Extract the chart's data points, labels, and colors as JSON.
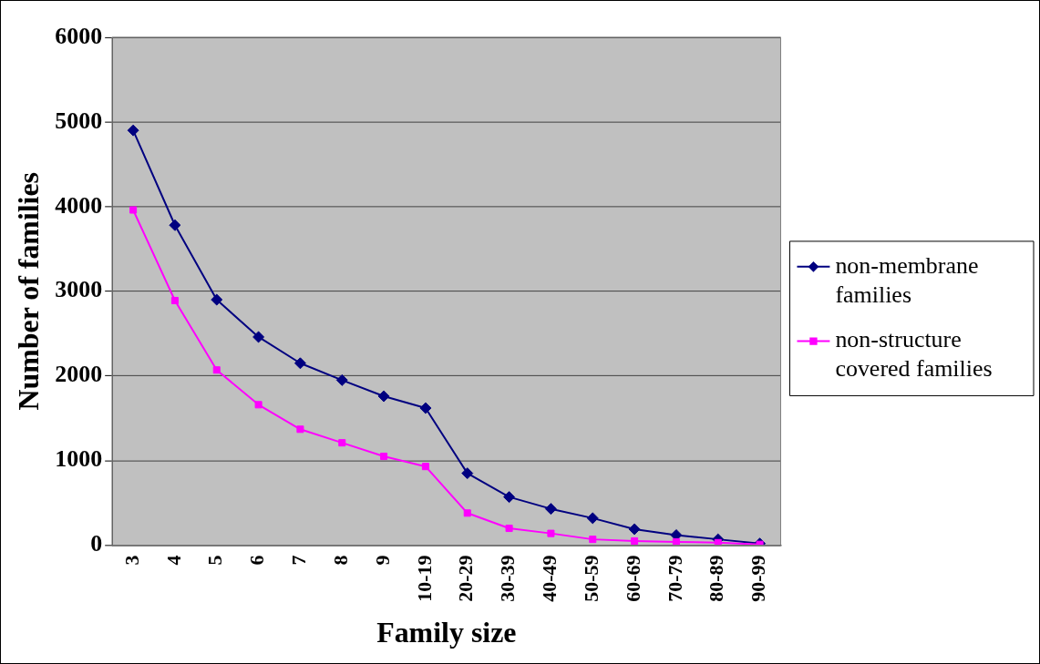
{
  "chart_data": {
    "type": "line",
    "xlabel": "Family size",
    "ylabel": "Number of families",
    "categories": [
      "3",
      "4",
      "5",
      "6",
      "7",
      "8",
      "9",
      "10-19",
      "20-29",
      "30-39",
      "40-49",
      "50-59",
      "60-69",
      "70-79",
      "80-89",
      "90-99"
    ],
    "series": [
      {
        "name": "non-membrane families",
        "color": "#000080",
        "marker": "diamond",
        "values": [
          4900,
          3780,
          2900,
          2460,
          2150,
          1950,
          1760,
          1620,
          850,
          570,
          430,
          320,
          190,
          120,
          70,
          20
        ]
      },
      {
        "name": "non-structure covered families",
        "color": "#ff00ff",
        "marker": "square",
        "values": [
          3960,
          2890,
          2070,
          1660,
          1370,
          1210,
          1050,
          930,
          380,
          200,
          140,
          70,
          50,
          40,
          30,
          10
        ]
      }
    ],
    "ylim": [
      0,
      6000
    ],
    "yticks": [
      0,
      1000,
      2000,
      3000,
      4000,
      5000,
      6000
    ],
    "grid": "y",
    "legend": "right"
  }
}
